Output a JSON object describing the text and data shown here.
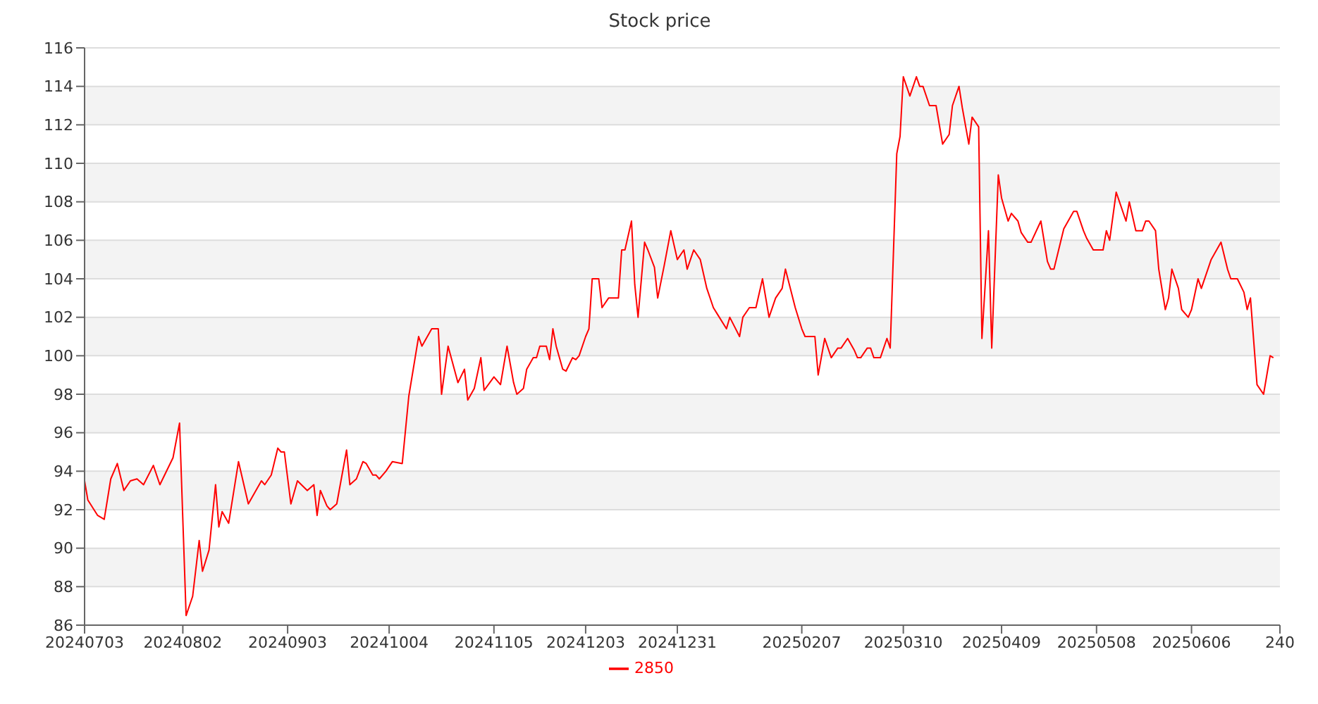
{
  "chart_data": {
    "type": "line",
    "title": "Stock price",
    "x": [
      "2024-07-03",
      "2024-07-04",
      "2024-07-07",
      "2024-07-09",
      "2024-07-11",
      "2024-07-13",
      "2024-07-15",
      "2024-07-17",
      "2024-07-19",
      "2024-07-21",
      "2024-07-24",
      "2024-07-26",
      "2024-07-30",
      "2024-08-01",
      "2024-08-03",
      "2024-08-05",
      "2024-08-07",
      "2024-08-08",
      "2024-08-10",
      "2024-08-12",
      "2024-08-13",
      "2024-08-14",
      "2024-08-16",
      "2024-08-19",
      "2024-08-22",
      "2024-08-26",
      "2024-08-27",
      "2024-08-29",
      "2024-08-31",
      "2024-09-01",
      "2024-09-02",
      "2024-09-04",
      "2024-09-06",
      "2024-09-09",
      "2024-09-11",
      "2024-09-12",
      "2024-09-13",
      "2024-09-15",
      "2024-09-16",
      "2024-09-18",
      "2024-09-21",
      "2024-09-22",
      "2024-09-24",
      "2024-09-26",
      "2024-09-27",
      "2024-09-29",
      "2024-09-30",
      "2024-10-01",
      "2024-10-03",
      "2024-10-05",
      "2024-10-08",
      "2024-10-10",
      "2024-10-13",
      "2024-10-14",
      "2024-10-17",
      "2024-10-19",
      "2024-10-20",
      "2024-10-22",
      "2024-10-25",
      "2024-10-27",
      "2024-10-28",
      "2024-10-30",
      "2024-11-01",
      "2024-11-02",
      "2024-11-05",
      "2024-11-07",
      "2024-11-09",
      "2024-11-11",
      "2024-11-12",
      "2024-11-14",
      "2024-11-15",
      "2024-11-17",
      "2024-11-18",
      "2024-11-19",
      "2024-11-21",
      "2024-11-22",
      "2024-11-23",
      "2024-11-24",
      "2024-11-26",
      "2024-11-27",
      "2024-11-29",
      "2024-11-30",
      "2024-12-01",
      "2024-12-03",
      "2024-12-04",
      "2024-12-05",
      "2024-12-07",
      "2024-12-08",
      "2024-12-10",
      "2024-12-13",
      "2024-12-14",
      "2024-12-15",
      "2024-12-17",
      "2024-12-18",
      "2024-12-19",
      "2024-12-21",
      "2024-12-22",
      "2024-12-24",
      "2024-12-25",
      "2024-12-27",
      "2024-12-29",
      "2024-12-31",
      "2025-01-02",
      "2025-01-03",
      "2025-01-05",
      "2025-01-07",
      "2025-01-09",
      "2025-01-11",
      "2025-01-15",
      "2025-01-16",
      "2025-01-19",
      "2025-01-20",
      "2025-01-22",
      "2025-01-24",
      "2025-01-26",
      "2025-01-28",
      "2025-01-30",
      "2025-02-01",
      "2025-02-02",
      "2025-02-05",
      "2025-02-07",
      "2025-02-08",
      "2025-02-11",
      "2025-02-12",
      "2025-02-14",
      "2025-02-16",
      "2025-02-18",
      "2025-02-19",
      "2025-02-21",
      "2025-02-23",
      "2025-02-24",
      "2025-02-25",
      "2025-02-27",
      "2025-02-28",
      "2025-03-01",
      "2025-03-03",
      "2025-03-05",
      "2025-03-06",
      "2025-03-08",
      "2025-03-09",
      "2025-03-10",
      "2025-03-12",
      "2025-03-14",
      "2025-03-15",
      "2025-03-16",
      "2025-03-18",
      "2025-03-20",
      "2025-03-22",
      "2025-03-24",
      "2025-03-25",
      "2025-03-27",
      "2025-03-28",
      "2025-03-30",
      "2025-03-31",
      "2025-04-02",
      "2025-04-03",
      "2025-04-05",
      "2025-04-06",
      "2025-04-08",
      "2025-04-09",
      "2025-04-11",
      "2025-04-12",
      "2025-04-14",
      "2025-04-15",
      "2025-04-17",
      "2025-04-18",
      "2025-04-21",
      "2025-04-23",
      "2025-04-24",
      "2025-04-25",
      "2025-04-27",
      "2025-04-28",
      "2025-05-01",
      "2025-05-02",
      "2025-05-04",
      "2025-05-05",
      "2025-05-07",
      "2025-05-10",
      "2025-05-11",
      "2025-05-12",
      "2025-05-14",
      "2025-05-15",
      "2025-05-17",
      "2025-05-18",
      "2025-05-20",
      "2025-05-22",
      "2025-05-23",
      "2025-05-24",
      "2025-05-26",
      "2025-05-27",
      "2025-05-29",
      "2025-05-30",
      "2025-05-31",
      "2025-06-02",
      "2025-06-03",
      "2025-06-05",
      "2025-06-06",
      "2025-06-08",
      "2025-06-09",
      "2025-06-11",
      "2025-06-12",
      "2025-06-15",
      "2025-06-17",
      "2025-06-18",
      "2025-06-20",
      "2025-06-22",
      "2025-06-23",
      "2025-06-24",
      "2025-06-26",
      "2025-06-28",
      "2025-06-30",
      "2025-07-01"
    ],
    "series": [
      {
        "name": "2850",
        "color": "#ff0000",
        "values": [
          93.5,
          92.5,
          91.7,
          91.5,
          93.6,
          94.4,
          93.0,
          93.5,
          93.6,
          93.3,
          94.3,
          93.3,
          94.7,
          96.5,
          86.5,
          87.5,
          90.4,
          88.8,
          89.9,
          93.3,
          91.1,
          91.9,
          91.3,
          94.5,
          92.3,
          93.5,
          93.3,
          93.8,
          95.2,
          95.0,
          95.0,
          92.3,
          93.5,
          93.0,
          93.3,
          91.7,
          93.0,
          92.2,
          92.0,
          92.3,
          95.1,
          93.3,
          93.6,
          94.5,
          94.4,
          93.8,
          93.8,
          93.6,
          94.0,
          94.5,
          94.4,
          97.9,
          101.0,
          100.5,
          101.4,
          101.4,
          98.0,
          100.5,
          98.6,
          99.3,
          97.7,
          98.3,
          99.9,
          98.2,
          98.9,
          98.5,
          100.5,
          98.6,
          98.0,
          98.3,
          99.3,
          99.9,
          99.9,
          100.5,
          100.5,
          99.8,
          101.4,
          100.5,
          99.3,
          99.2,
          99.9,
          99.8,
          100.0,
          101.0,
          101.4,
          104.0,
          104.0,
          102.5,
          103.0,
          103.0,
          105.5,
          105.5,
          107.0,
          103.7,
          102.0,
          105.9,
          105.5,
          104.6,
          103.0,
          104.7,
          106.5,
          105.0,
          105.5,
          104.5,
          105.5,
          105.0,
          103.5,
          102.5,
          101.4,
          102.0,
          101.0,
          102.0,
          102.5,
          102.5,
          104.0,
          102.0,
          103.0,
          103.5,
          104.5,
          102.5,
          101.4,
          101.0,
          101.0,
          99.0,
          100.9,
          99.9,
          100.4,
          100.4,
          100.9,
          100.3,
          99.9,
          99.9,
          100.4,
          100.4,
          99.9,
          99.9,
          100.9,
          100.4,
          110.5,
          111.4,
          114.5,
          113.5,
          114.5,
          114.0,
          114.0,
          113.0,
          113.0,
          111.0,
          111.5,
          113.0,
          114.0,
          112.9,
          111.0,
          112.4,
          111.9,
          100.9,
          106.5,
          100.4,
          109.4,
          108.2,
          107.0,
          107.4,
          107.0,
          106.4,
          105.9,
          105.9,
          107.0,
          104.9,
          104.5,
          104.5,
          105.9,
          106.6,
          107.5,
          107.5,
          106.5,
          106.1,
          105.5,
          105.5,
          106.5,
          106.0,
          108.5,
          108.0,
          107.0,
          108.0,
          106.5,
          106.5,
          107.0,
          107.0,
          106.5,
          104.5,
          102.4,
          103.0,
          104.5,
          103.5,
          102.4,
          102.0,
          102.4,
          104.0,
          103.5,
          104.5,
          105.0,
          105.9,
          104.5,
          104.0,
          104.0,
          103.3,
          102.4,
          103.0,
          98.5,
          98.0,
          100.0,
          99.9
        ]
      }
    ],
    "xlim": [
      "2024-07-03",
      "2025-07-03"
    ],
    "xticks": [
      {
        "value": "2024-07-03",
        "label": "20240703"
      },
      {
        "value": "2024-08-02",
        "label": "20240802"
      },
      {
        "value": "2024-09-03",
        "label": "20240903"
      },
      {
        "value": "2024-10-04",
        "label": "20241004"
      },
      {
        "value": "2024-11-05",
        "label": "20241105"
      },
      {
        "value": "2024-12-03",
        "label": "20241203"
      },
      {
        "value": "2024-12-31",
        "label": "20241231"
      },
      {
        "value": "2025-02-07",
        "label": "20250207"
      },
      {
        "value": "2025-03-10",
        "label": "20250310"
      },
      {
        "value": "2025-04-09",
        "label": "20250409"
      },
      {
        "value": "2025-05-08",
        "label": "20250508"
      },
      {
        "value": "2025-06-06",
        "label": "20250606"
      },
      {
        "value": "2025-07-03",
        "label": "240"
      }
    ],
    "ylim": [
      86,
      116
    ],
    "yticks": [
      86,
      88,
      90,
      92,
      94,
      96,
      98,
      100,
      102,
      104,
      106,
      108,
      110,
      112,
      114,
      116
    ],
    "grid": "y",
    "legend": "bottom",
    "marker": "none"
  }
}
